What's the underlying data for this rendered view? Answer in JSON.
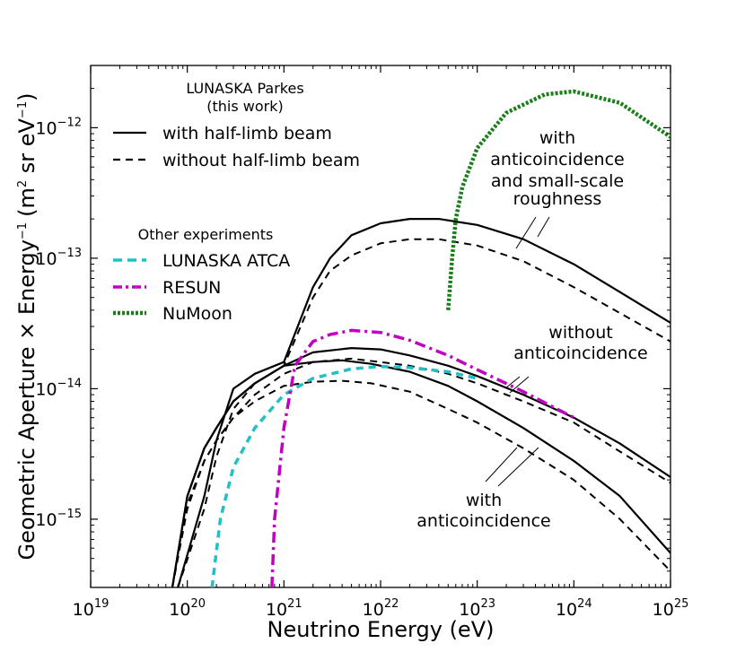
{
  "chart_data": {
    "type": "line",
    "xscale": "log",
    "yscale": "log",
    "xlim": [
      1e+19,
      1e+25
    ],
    "ylim": [
      3e-16,
      3e-12
    ],
    "xlabel": "Neutrino Energy (eV)",
    "ylabel": {
      "main": "Geometric Aperture × Energy",
      "exp": "−1",
      "units_open": "(m",
      "units_sq": "2",
      "units_mid": " sr eV",
      "units_exp": "−1",
      "units_close": ")"
    },
    "x_ticks": [
      {
        "base": "10",
        "exp": "19",
        "value": 1e+19
      },
      {
        "base": "10",
        "exp": "20",
        "value": 1e+20
      },
      {
        "base": "10",
        "exp": "21",
        "value": 1e+21
      },
      {
        "base": "10",
        "exp": "22",
        "value": 1e+22
      },
      {
        "base": "10",
        "exp": "23",
        "value": 1e+23
      },
      {
        "base": "10",
        "exp": "24",
        "value": 1e+24
      },
      {
        "base": "10",
        "exp": "25",
        "value": 1e+25
      }
    ],
    "y_ticks": [
      {
        "base": "10",
        "exp": "−15",
        "value": 1e-15
      },
      {
        "base": "10",
        "exp": "−14",
        "value": 1e-14
      },
      {
        "base": "10",
        "exp": "−13",
        "value": 1e-13
      },
      {
        "base": "10",
        "exp": "−12",
        "value": 1e-12
      }
    ],
    "legend": {
      "placement": "upper-left",
      "title_line1": "LUNASKA Parkes",
      "title_line2": "(this work)",
      "entries_this_work": [
        {
          "label": "with half-limb beam",
          "style": "solid",
          "color": "#000000"
        },
        {
          "label": "without half-limb beam",
          "style": "dashed",
          "color": "#000000"
        }
      ],
      "other_title": "Other experiments",
      "entries_other": [
        {
          "label": "LUNASKA ATCA",
          "style": "dashed",
          "color": "#22bfc4"
        },
        {
          "label": "RESUN",
          "style": "dashdot",
          "color": "#c100c1"
        },
        {
          "label": "NuMoon",
          "style": "dotted",
          "color": "#1a7f1a"
        }
      ]
    },
    "series": [
      {
        "name": "Parkes, anticoincidence + small-scale roughness, with half-limb beam",
        "style": "solid",
        "color": "#000000",
        "x": [
          8e+19,
          1.5e+20,
          2e+20,
          3e+20,
          5e+20,
          1e+21,
          2e+21,
          3e+21,
          5e+21,
          1e+22,
          2e+22,
          4e+22,
          1e+23,
          3e+23,
          1e+24,
          3e+24,
          1e+25
        ],
        "y": [
          3e-16,
          1.5e-15,
          4e-15,
          1e-14,
          1.3e-14,
          1.6e-14,
          6e-14,
          1e-13,
          1.5e-13,
          1.85e-13,
          2e-13,
          2e-13,
          1.8e-13,
          1.4e-13,
          9e-14,
          5.5e-14,
          3.2e-14
        ]
      },
      {
        "name": "Parkes, anticoincidence + small-scale roughness, without half-limb beam",
        "style": "dashed",
        "color": "#000000",
        "x": [
          8e+19,
          1.5e+20,
          2e+20,
          3e+20,
          5e+20,
          1e+21,
          2e+21,
          3e+21,
          5e+21,
          1e+22,
          2e+22,
          4e+22,
          1e+23,
          3e+23,
          1e+24,
          3e+24,
          1e+25
        ],
        "y": [
          3e-16,
          1.2e-15,
          3e-15,
          7e-15,
          1.1e-14,
          1.5e-14,
          5e-14,
          8e-14,
          1.05e-13,
          1.3e-13,
          1.4e-13,
          1.4e-13,
          1.25e-13,
          9.5e-14,
          6e-14,
          3.8e-14,
          2.3e-14
        ]
      },
      {
        "name": "Parkes, without anticoincidence, with half-limb beam",
        "style": "solid",
        "color": "#000000",
        "x": [
          7e+19,
          1e+20,
          1.5e+20,
          2e+20,
          3e+20,
          5e+20,
          1e+21,
          2e+21,
          5e+21,
          1e+22,
          2e+22,
          5e+22,
          1e+23,
          3e+23,
          1e+24,
          3e+24,
          1e+25
        ],
        "y": [
          3e-16,
          1.5e-15,
          3.5e-15,
          5e-15,
          8e-15,
          1.1e-14,
          1.5e-14,
          1.9e-14,
          2.05e-14,
          2e-14,
          1.8e-14,
          1.5e-14,
          1.25e-14,
          9e-15,
          6e-15,
          3.8e-15,
          2.1e-15
        ]
      },
      {
        "name": "Parkes, without anticoincidence, without half-limb beam",
        "style": "dashed",
        "color": "#000000",
        "x": [
          7e+19,
          1e+20,
          1.5e+20,
          2e+20,
          3e+20,
          5e+20,
          1e+21,
          2e+21,
          5e+21,
          1e+22,
          2e+22,
          5e+22,
          1e+23,
          3e+23,
          1e+24,
          3e+24,
          1e+25
        ],
        "y": [
          3e-16,
          1.3e-15,
          2.8e-15,
          4e-15,
          6e-15,
          9e-15,
          1.3e-14,
          1.6e-14,
          1.7e-14,
          1.6e-14,
          1.5e-14,
          1.3e-14,
          1.1e-14,
          8e-15,
          5.5e-15,
          3.3e-15,
          1.9e-15
        ]
      },
      {
        "name": "Parkes, with anticoincidence, with half-limb beam",
        "style": "solid",
        "color": "#000000",
        "x": [
          7e+19,
          1e+20,
          1.5e+20,
          2e+20,
          3e+20,
          5e+20,
          1e+21,
          2e+21,
          4e+21,
          8e+21,
          2e+22,
          5e+22,
          1e+23,
          3e+23,
          1e+24,
          3e+24,
          1e+25
        ],
        "y": [
          3e-16,
          1.5e-15,
          3.5e-15,
          5e-15,
          8e-15,
          1.1e-14,
          1.5e-14,
          1.6e-14,
          1.65e-14,
          1.55e-14,
          1.35e-14,
          1.05e-14,
          8e-15,
          5e-15,
          2.8e-15,
          1.5e-15,
          5.5e-16
        ]
      },
      {
        "name": "Parkes, with anticoincidence, without half-limb beam",
        "style": "dashed",
        "color": "#000000",
        "x": [
          7e+19,
          1e+20,
          1.5e+20,
          2e+20,
          3e+20,
          5e+20,
          1e+21,
          2e+21,
          4e+21,
          8e+21,
          2e+22,
          5e+22,
          1e+23,
          3e+23,
          1e+24,
          3e+24,
          1e+25
        ],
        "y": [
          3e-16,
          1.2e-15,
          2.8e-15,
          4e-15,
          6e-15,
          8e-15,
          1.05e-14,
          1.13e-14,
          1.15e-14,
          1.1e-14,
          9.5e-15,
          7e-15,
          5.5e-15,
          3.5e-15,
          2e-15,
          1e-15,
          4e-16
        ]
      },
      {
        "name": "LUNASKA ATCA",
        "style": "dashed",
        "color": "#22bfc4",
        "x": [
          1.8e+20,
          2.2e+20,
          3e+20,
          5e+20,
          1e+21,
          2e+21,
          5e+21,
          1e+22,
          2e+22,
          5e+22,
          1e+23
        ],
        "y": [
          3e-16,
          1e-15,
          2.5e-15,
          5e-15,
          9e-15,
          1.2e-14,
          1.42e-14,
          1.48e-14,
          1.45e-14,
          1.35e-14,
          1.2e-14
        ]
      },
      {
        "name": "RESUN",
        "style": "dashdot",
        "color": "#c100c1",
        "x": [
          7.5e+20,
          8e+20,
          1e+21,
          1.3e+21,
          2e+21,
          3e+21,
          5e+21,
          1e+22,
          2e+22,
          5e+22,
          1e+23,
          3e+23,
          1e+24
        ],
        "y": [
          3e-16,
          1e-15,
          5e-15,
          1.5e-14,
          2.3e-14,
          2.6e-14,
          2.8e-14,
          2.7e-14,
          2.35e-14,
          1.8e-14,
          1.4e-14,
          9.5e-15,
          6e-15
        ]
      },
      {
        "name": "NuMoon",
        "style": "dotted",
        "color": "#1a7f1a",
        "x": [
          5e+22,
          5.5e+22,
          6e+22,
          7e+22,
          1e+23,
          2e+23,
          5e+23,
          1e+24,
          3e+24,
          1e+25
        ],
        "y": [
          4e-14,
          1e-13,
          2e-13,
          3.5e-13,
          7e-13,
          1.3e-12,
          1.8e-12,
          1.9e-12,
          1.55e-12,
          8.5e-13
        ]
      }
    ],
    "annotations": [
      {
        "lines": [
          "with",
          "anticoincidence",
          "and small-scale",
          "roughness"
        ]
      },
      {
        "lines": [
          "without",
          "anticoincidence"
        ]
      },
      {
        "lines": [
          "with",
          "anticoincidence"
        ]
      }
    ]
  }
}
